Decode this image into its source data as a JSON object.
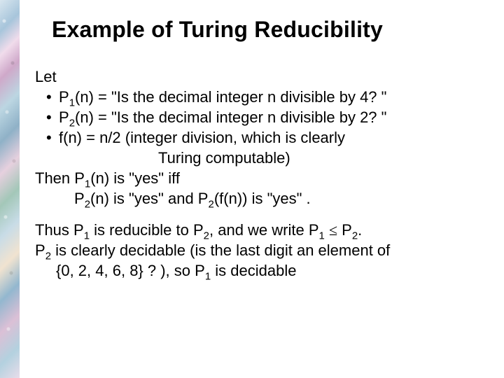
{
  "title": "Example of Turing Reducibility",
  "let": "Let",
  "b1_a": "P",
  "b1_b": "1",
  "b1_c": "(n) = \"Is the decimal integer n divisible by 4? \"",
  "b2_a": "P",
  "b2_b": "2",
  "b2_c": "(n) = \"Is the decimal integer n divisible by 2? \"",
  "b3": "f(n) = n/2 (integer division, which is clearly",
  "b3_cont": "Turing computable)",
  "then_a": "Then P",
  "then_b": "1",
  "then_c": "(n) is \"yes\" iff",
  "then2_a": "P",
  "then2_b": "2",
  "then2_c": "(n) is \"yes\" and P",
  "then2_d": "2",
  "then2_e": "(f(n)) is \"yes\" .",
  "thus_a": "Thus P",
  "thus_b": "1",
  "thus_c": " is reducible to P",
  "thus_d": "2",
  "thus_e": ", and we write P",
  "thus_f": "1",
  "thus_g": " ",
  "thus_leq": "≤",
  "thus_h": " P",
  "thus_i": "2",
  "thus_j": ".",
  "p2_a": "P",
  "p2_b": "2",
  "p2_c": " is clearly decidable (is the last digit an element of",
  "p2_cont_a": "{0, 2, 4, 6, 8} ? ), so P",
  "p2_cont_b": "1",
  "p2_cont_c": " is decidable"
}
